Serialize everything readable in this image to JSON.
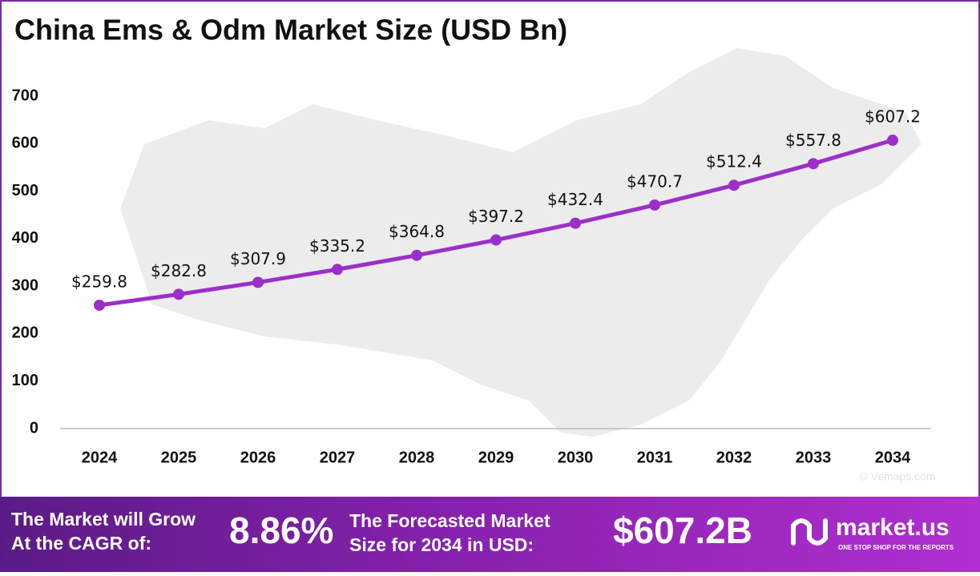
{
  "chart_data": {
    "type": "line",
    "title": "China Ems & Odm Market Size (USD Bn)",
    "categories": [
      "2024",
      "2025",
      "2026",
      "2027",
      "2028",
      "2029",
      "2030",
      "2031",
      "2032",
      "2033",
      "2034"
    ],
    "values": [
      259.8,
      282.8,
      307.9,
      335.2,
      364.8,
      397.2,
      432.4,
      470.7,
      512.4,
      557.8,
      607.2
    ],
    "value_labels": [
      "$259.8",
      "$282.8",
      "$307.9",
      "$335.2",
      "$364.8",
      "$397.2",
      "$432.4",
      "$470.7",
      "$512.4",
      "$557.8",
      "$607.2"
    ],
    "color": "#9b2fc9",
    "ylim": [
      0,
      700
    ],
    "yticks": [
      0,
      100,
      200,
      300,
      400,
      500,
      600,
      700
    ],
    "grid": false
  },
  "watermark": "© Vemaps.com",
  "footer": {
    "cagr_label": [
      "The Market will Grow",
      "At the CAGR of:"
    ],
    "cagr_value": "8.86%",
    "forecast_label": [
      "The Forecasted Market",
      "Size for 2034 in USD:"
    ],
    "forecast_value": "$607.2B",
    "brand": "market.us",
    "tagline": "ONE STOP SHOP FOR THE REPORTS"
  }
}
